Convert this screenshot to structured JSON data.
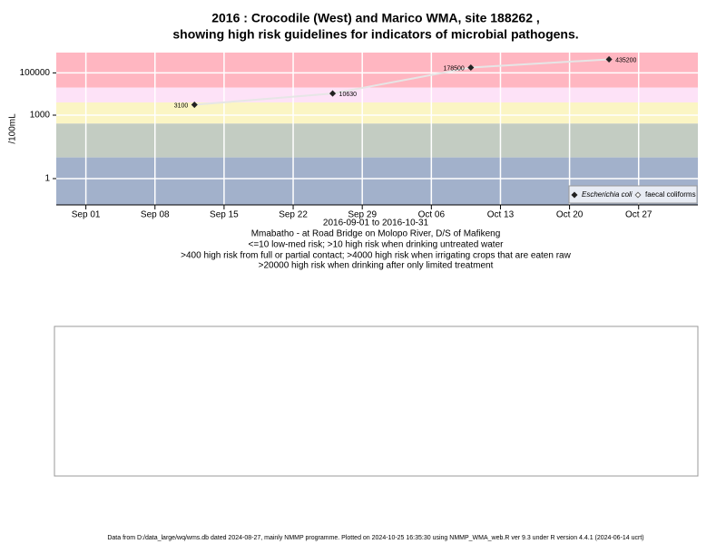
{
  "chart_data": {
    "type": "line",
    "title": "2016 : Crocodile (West) and Marico WMA, site 188262 ,",
    "subtitle": "showing high risk guidelines for indicators of microbial pathogens.",
    "y_label": "/100mL",
    "x_label": "2016-09-01 to 2016-10-31",
    "notes": [
      "Mmabatho - at Road Bridge on Molopo River, D/S of Mafikeng",
      "<=10 low-med risk; >10 high risk when drinking untreated water",
      ">400 high risk from full or partial contact; >4000 high risk when irrigating crops that are eaten raw",
      ">20000 high risk when drinking after only limited treatment"
    ],
    "x": [
      "2016-09-12",
      "2016-09-26",
      "2016-10-10",
      "2016-10-24"
    ],
    "series": [
      {
        "name": "Escherichia coli",
        "color": "#222222",
        "values": [
          3100,
          10630,
          178500,
          435200
        ]
      },
      {
        "name": "faecal coliforms",
        "color": "#ffffff",
        "values": [
          null,
          null,
          null,
          null
        ]
      }
    ],
    "line_color": "#e6e6e6",
    "log_y": true,
    "ylim": [
      0.057,
      910000
    ],
    "yticks": [
      1,
      1000,
      100000
    ],
    "xlim": [
      "2016-08-29",
      "2016-11-02"
    ],
    "xticks": [
      {
        "value": "2016-09-01",
        "label": "Sep 01"
      },
      {
        "value": "2016-09-08",
        "label": "Sep 08"
      },
      {
        "value": "2016-09-15",
        "label": "Sep 15"
      },
      {
        "value": "2016-09-22",
        "label": "Sep 22"
      },
      {
        "value": "2016-09-29",
        "label": "Sep 29"
      },
      {
        "value": "2016-10-06",
        "label": "Oct 06"
      },
      {
        "value": "2016-10-13",
        "label": "Oct 13"
      },
      {
        "value": "2016-10-20",
        "label": "Oct 20"
      },
      {
        "value": "2016-10-27",
        "label": "Oct 27"
      }
    ],
    "bands": [
      {
        "from": 20000,
        "color": "#ffb6c1"
      },
      {
        "from": 4000,
        "color": "#fde2f7"
      },
      {
        "from": 400,
        "color": "#fbf5c4"
      },
      {
        "from": 10,
        "color": "#c3ccc2"
      },
      {
        "from": 0.057,
        "color": "#a2b1cb"
      }
    ],
    "grid": true,
    "legend": "bottom-right"
  },
  "footer": "Data from D:/data_large/wq/wms.db dated 2024-08-27, mainly NMMP programme. Plotted on 2024-10-25 16:35:30 using NMMP_WMA_web.R ver 9.3 under R version 4.4.1 (2024-06-14 ucrt)"
}
